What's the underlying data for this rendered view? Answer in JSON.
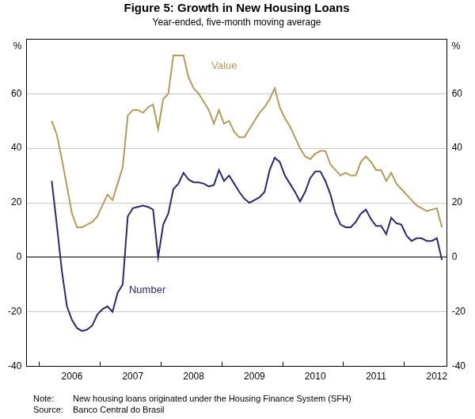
{
  "chart_data": {
    "type": "line",
    "title": "Figure 5: Growth in New Housing Loans",
    "subtitle": "Year-ended, five-month moving average",
    "ylabel": "%",
    "y2label": "%",
    "categories": [
      null,
      null,
      null,
      null,
      null,
      null,
      null,
      null,
      null,
      "2006",
      null,
      null,
      null,
      null,
      null,
      null,
      null,
      null,
      null,
      null,
      null,
      "2007",
      null,
      null,
      null,
      null,
      null,
      null,
      null,
      null,
      null,
      null,
      null,
      "2008",
      null,
      null,
      null,
      null,
      null,
      null,
      null,
      null,
      null,
      null,
      null,
      "2009",
      null,
      null,
      null,
      null,
      null,
      null,
      null,
      null,
      null,
      null,
      null,
      "2010",
      null,
      null,
      null,
      null,
      null,
      null,
      null,
      null,
      null,
      null,
      null,
      "2011",
      null,
      null,
      null,
      null,
      null,
      null,
      null,
      null,
      null,
      null,
      null,
      "2012",
      null,
      null
    ],
    "series": [
      {
        "name": "Value",
        "color": "#b39b5e",
        "values": [
          null,
          null,
          null,
          null,
          null,
          50,
          45,
          36,
          26,
          16,
          11,
          11,
          12,
          13,
          15,
          19,
          23,
          21,
          27,
          33,
          52,
          54,
          54,
          53,
          55,
          56,
          47,
          58,
          60,
          74,
          74,
          74,
          66,
          62,
          60,
          57,
          54,
          49,
          54,
          49,
          50,
          46,
          44,
          44,
          47,
          50,
          53,
          55,
          58,
          62,
          55,
          51,
          48,
          44,
          40,
          37,
          36,
          38,
          39,
          39,
          34,
          32,
          30,
          31,
          30,
          30,
          35,
          37,
          35,
          32,
          32,
          28,
          31,
          27,
          25,
          23,
          21,
          19,
          18,
          17,
          17.5,
          18,
          11,
          null
        ]
      },
      {
        "name": "Number",
        "color": "#2b2a6b",
        "values": [
          null,
          null,
          null,
          null,
          null,
          28,
          12,
          -5,
          -18,
          -23,
          -26,
          -27,
          -26.5,
          -25,
          -21,
          -19,
          -18,
          -20,
          -13,
          -10,
          15,
          18,
          18.5,
          19,
          18.5,
          17.5,
          0,
          12,
          16,
          25,
          27,
          31,
          28.5,
          27.5,
          27.5,
          27,
          26,
          26.5,
          32,
          28,
          30,
          27,
          24,
          21.5,
          20,
          21,
          22,
          24,
          32,
          36.5,
          35,
          30,
          27,
          24,
          20.5,
          24,
          29,
          31.5,
          31.5,
          28,
          23,
          16,
          12,
          11,
          11,
          13,
          16,
          17.5,
          14,
          11.5,
          11.5,
          8.5,
          14.5,
          12.5,
          12,
          8,
          6,
          7,
          7,
          6,
          6,
          7,
          -1,
          null
        ]
      }
    ],
    "ylim": [
      -40,
      80
    ],
    "yticks": [
      -40,
      -20,
      0,
      20,
      40,
      60
    ],
    "y2lim": [
      -40,
      80
    ],
    "y2ticks": [
      -40,
      -20,
      0,
      20,
      40,
      60
    ],
    "grid": true,
    "notes": [
      {
        "label": "Note:",
        "text": "New housing loans originated under the Housing Finance System (SFH)"
      },
      {
        "label": "Source:",
        "text": "Banco Central do Brasil"
      }
    ]
  }
}
